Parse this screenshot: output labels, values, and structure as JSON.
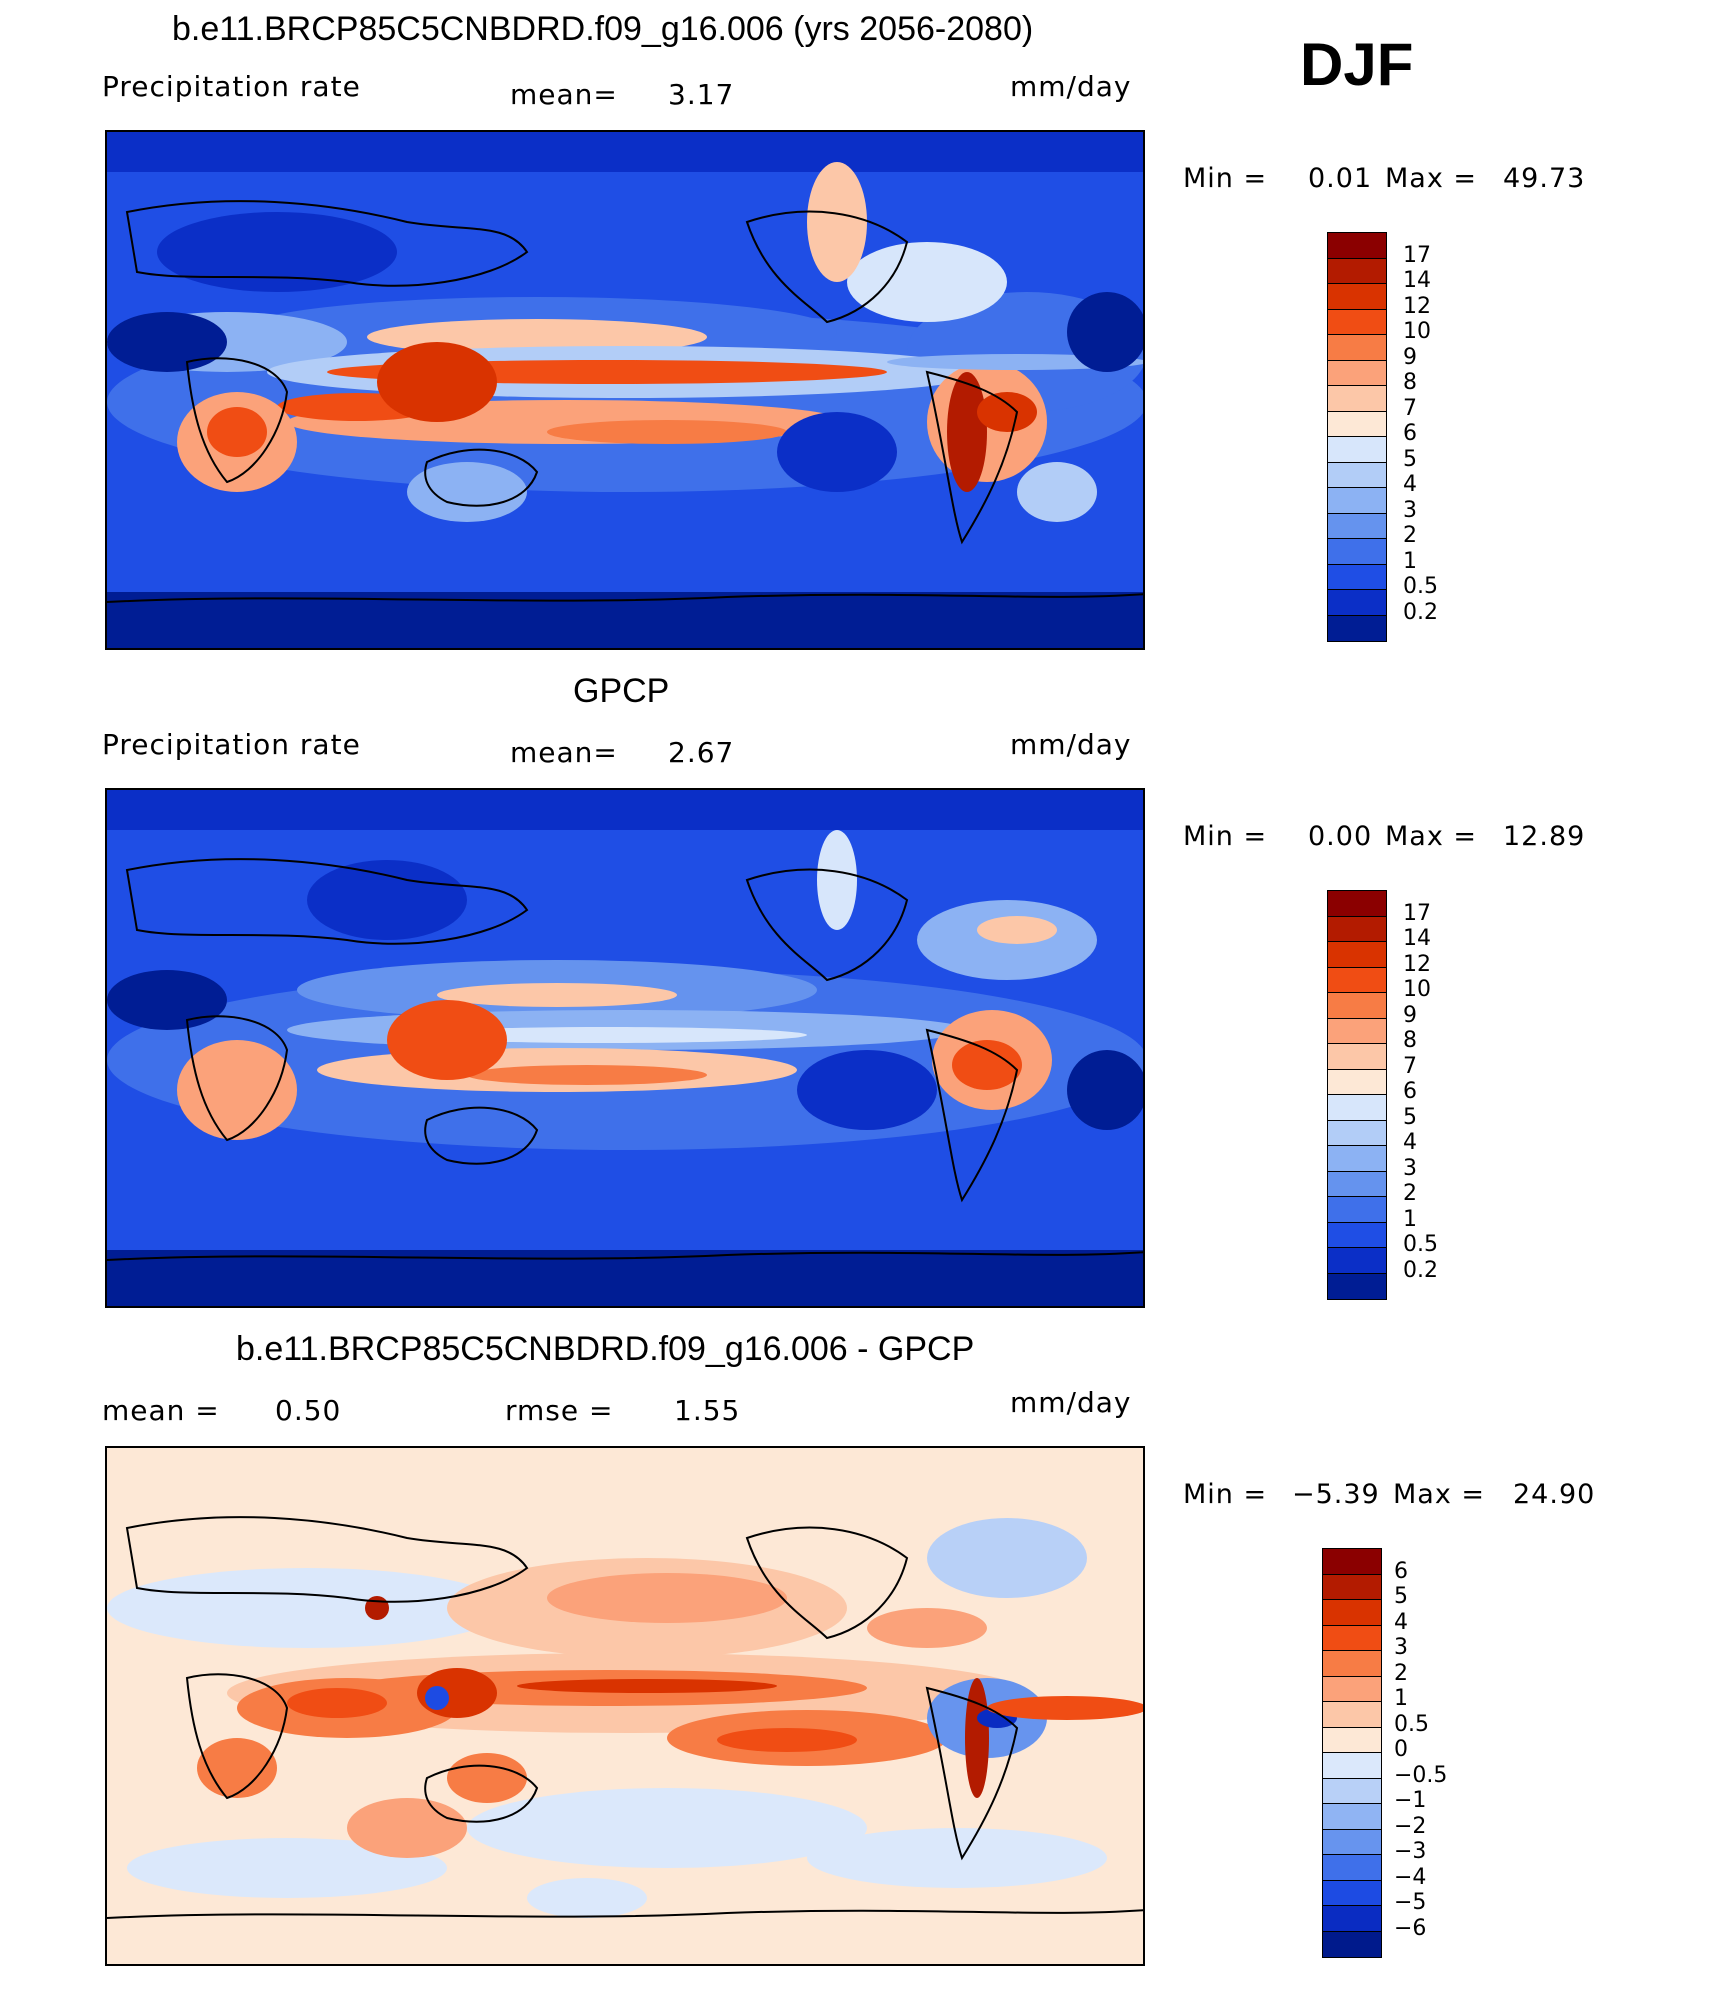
{
  "season": "DJF",
  "panels": [
    {
      "title": "b.e11.BRCP85C5CNBDRD.f09_g16.006 (yrs 2056-2080)",
      "left_label": "Precipitation  rate",
      "center_label": "mean=",
      "center_value": "3.17",
      "units": "mm/day",
      "min_label": "Min  =",
      "min_value": "0.01",
      "max_label": "Max  =",
      "max_value": "49.73",
      "levels": [
        "17",
        "14",
        "12",
        "10",
        "9",
        "8",
        "7",
        "6",
        "5",
        "4",
        "3",
        "2",
        "1",
        "0.5",
        "0.2"
      ],
      "colors": [
        "#8b0000",
        "#b31b00",
        "#d93300",
        "#f04d14",
        "#f77c45",
        "#fba27a",
        "#fcc7a8",
        "#fde8d6",
        "#d7e6fb",
        "#b2cdf7",
        "#8cb2f3",
        "#6593ee",
        "#3f70ea",
        "#1f4ee5",
        "#0b2fc7",
        "#001d94"
      ]
    },
    {
      "title": "GPCP",
      "left_label": "Precipitation  rate",
      "center_label": "mean=",
      "center_value": "2.67",
      "units": "mm/day",
      "min_label": "Min  =",
      "min_value": "0.00",
      "max_label": "Max  =",
      "max_value": "12.89",
      "levels": [
        "17",
        "14",
        "12",
        "10",
        "9",
        "8",
        "7",
        "6",
        "5",
        "4",
        "3",
        "2",
        "1",
        "0.5",
        "0.2"
      ],
      "colors": [
        "#8b0000",
        "#b31b00",
        "#d93300",
        "#f04d14",
        "#f77c45",
        "#fba27a",
        "#fcc7a8",
        "#fde8d6",
        "#d7e6fb",
        "#b2cdf7",
        "#8cb2f3",
        "#6593ee",
        "#3f70ea",
        "#1f4ee5",
        "#0b2fc7",
        "#001d94"
      ]
    },
    {
      "title": "b.e11.BRCP85C5CNBDRD.f09_g16.006 - GPCP",
      "left_label": "mean  =",
      "left_value": "0.50",
      "center_label": "rmse  =",
      "center_value": "1.55",
      "units": "mm/day",
      "min_label": "Min  =",
      "min_value": "−5.39",
      "max_label": "Max  =",
      "max_value": "24.90",
      "levels": [
        "6",
        "5",
        "4",
        "3",
        "2",
        "1",
        "0.5",
        "0",
        "−0.5",
        "−1",
        "−2",
        "−3",
        "−4",
        "−5",
        "−6"
      ],
      "colors": [
        "#8b0000",
        "#b31b00",
        "#d93300",
        "#f04d14",
        "#f77c45",
        "#fba27a",
        "#fcc7a8",
        "#fde8d6",
        "#dbe8fb",
        "#b8d0f7",
        "#90b4f3",
        "#6794ee",
        "#3f70ea",
        "#1d4be3",
        "#0a2cc2",
        "#001a8c"
      ]
    }
  ]
}
